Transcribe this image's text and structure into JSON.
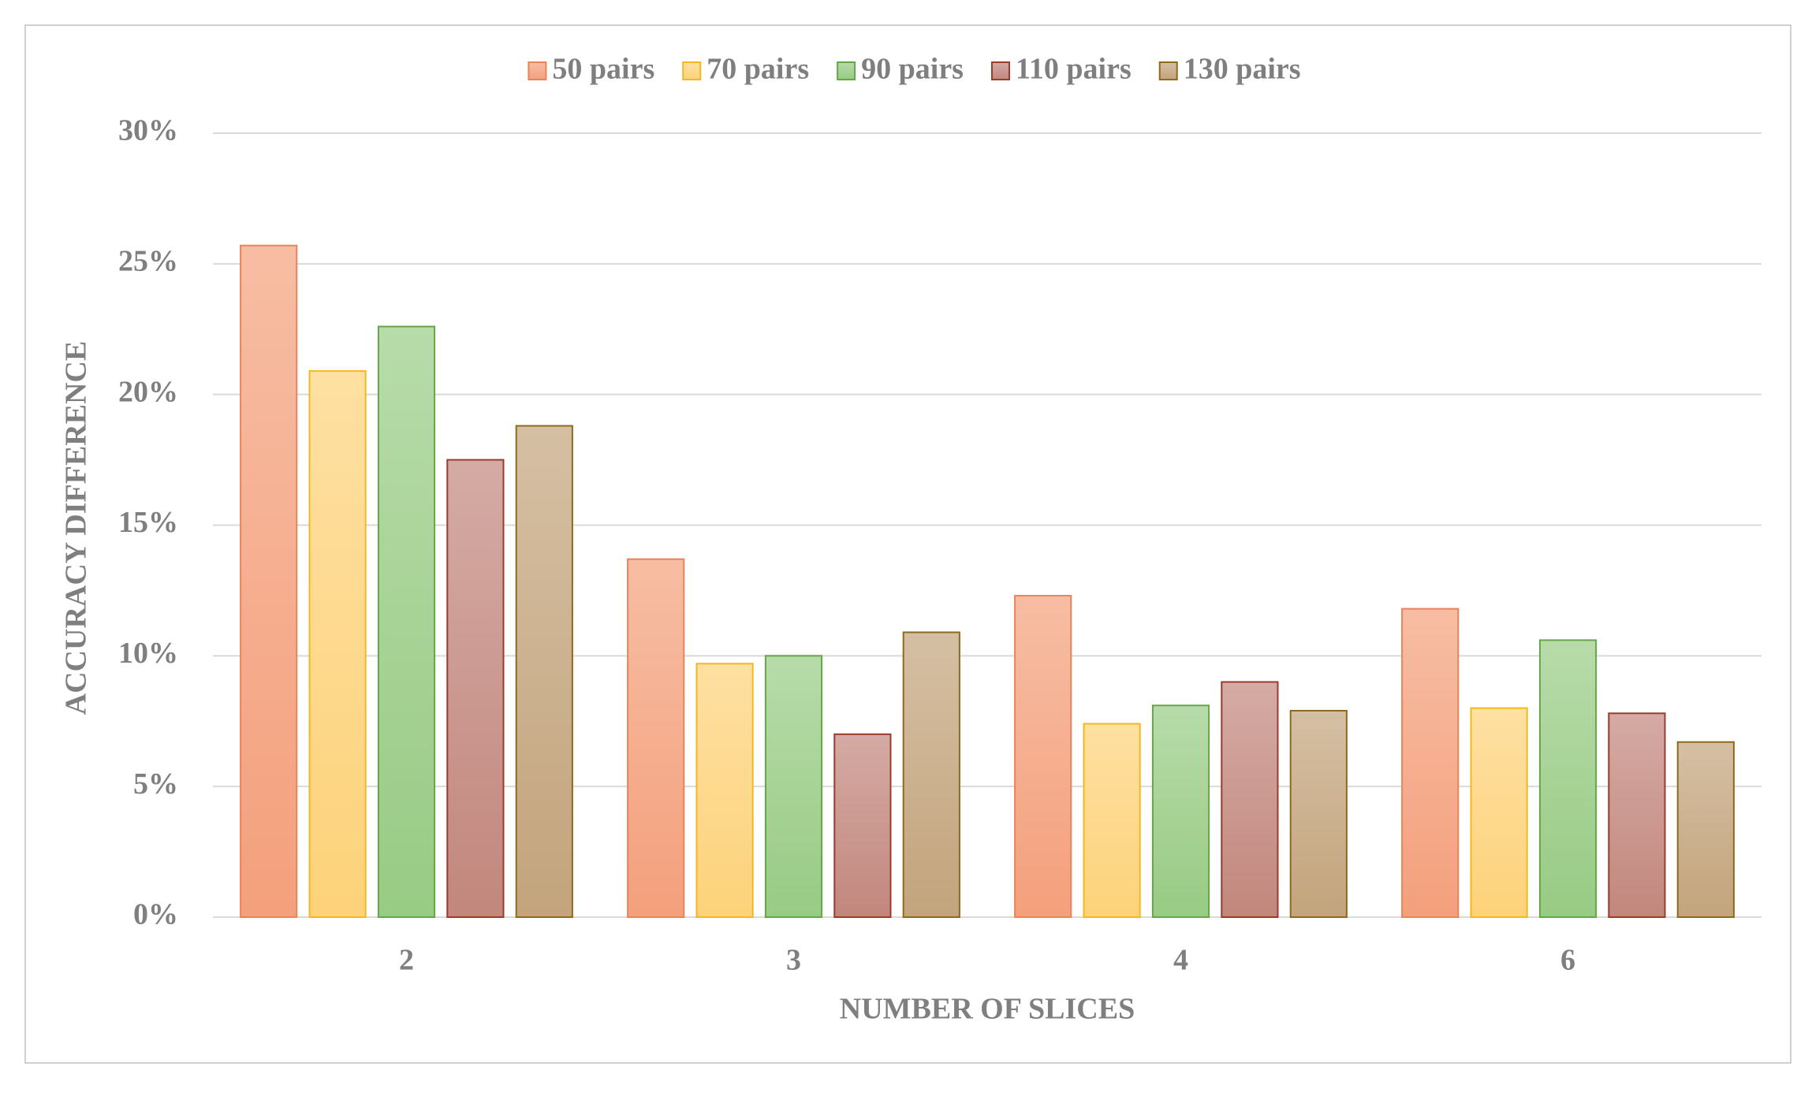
{
  "chart_data": {
    "type": "bar",
    "x_label": "NUMBER OF SLICES",
    "y_label": "ACCURACY DIFFERENCE",
    "categories": [
      "2",
      "3",
      "4",
      "6"
    ],
    "series": [
      {
        "name": "50 pairs",
        "color": "#f4a07c",
        "edge": "#e8835a",
        "values": [
          25.7,
          13.7,
          12.3,
          11.8
        ]
      },
      {
        "name": "70 pairs",
        "color": "#fdd27a",
        "edge": "#f2b81e",
        "values": [
          20.9,
          9.7,
          7.4,
          8.0
        ]
      },
      {
        "name": "90 pairs",
        "color": "#98cb84",
        "edge": "#64a648",
        "values": [
          22.6,
          10.0,
          8.1,
          10.6
        ]
      },
      {
        "name": "110 pairs",
        "color": "#c2877d",
        "edge": "#9b3b2c",
        "values": [
          17.5,
          7.0,
          9.0,
          7.8
        ]
      },
      {
        "name": "130 pairs",
        "color": "#c3a47c",
        "edge": "#8d6a1c",
        "values": [
          18.8,
          10.9,
          7.9,
          6.7
        ]
      }
    ],
    "ylim": [
      0,
      30
    ],
    "yticks": [
      {
        "value": 0,
        "label": "0%"
      },
      {
        "value": 5,
        "label": "5%"
      },
      {
        "value": 10,
        "label": "10%"
      },
      {
        "value": 15,
        "label": "15%"
      },
      {
        "value": 20,
        "label": "20%"
      },
      {
        "value": 25,
        "label": "25%"
      },
      {
        "value": 30,
        "label": "30%"
      }
    ],
    "grid": true,
    "legend": "top"
  }
}
